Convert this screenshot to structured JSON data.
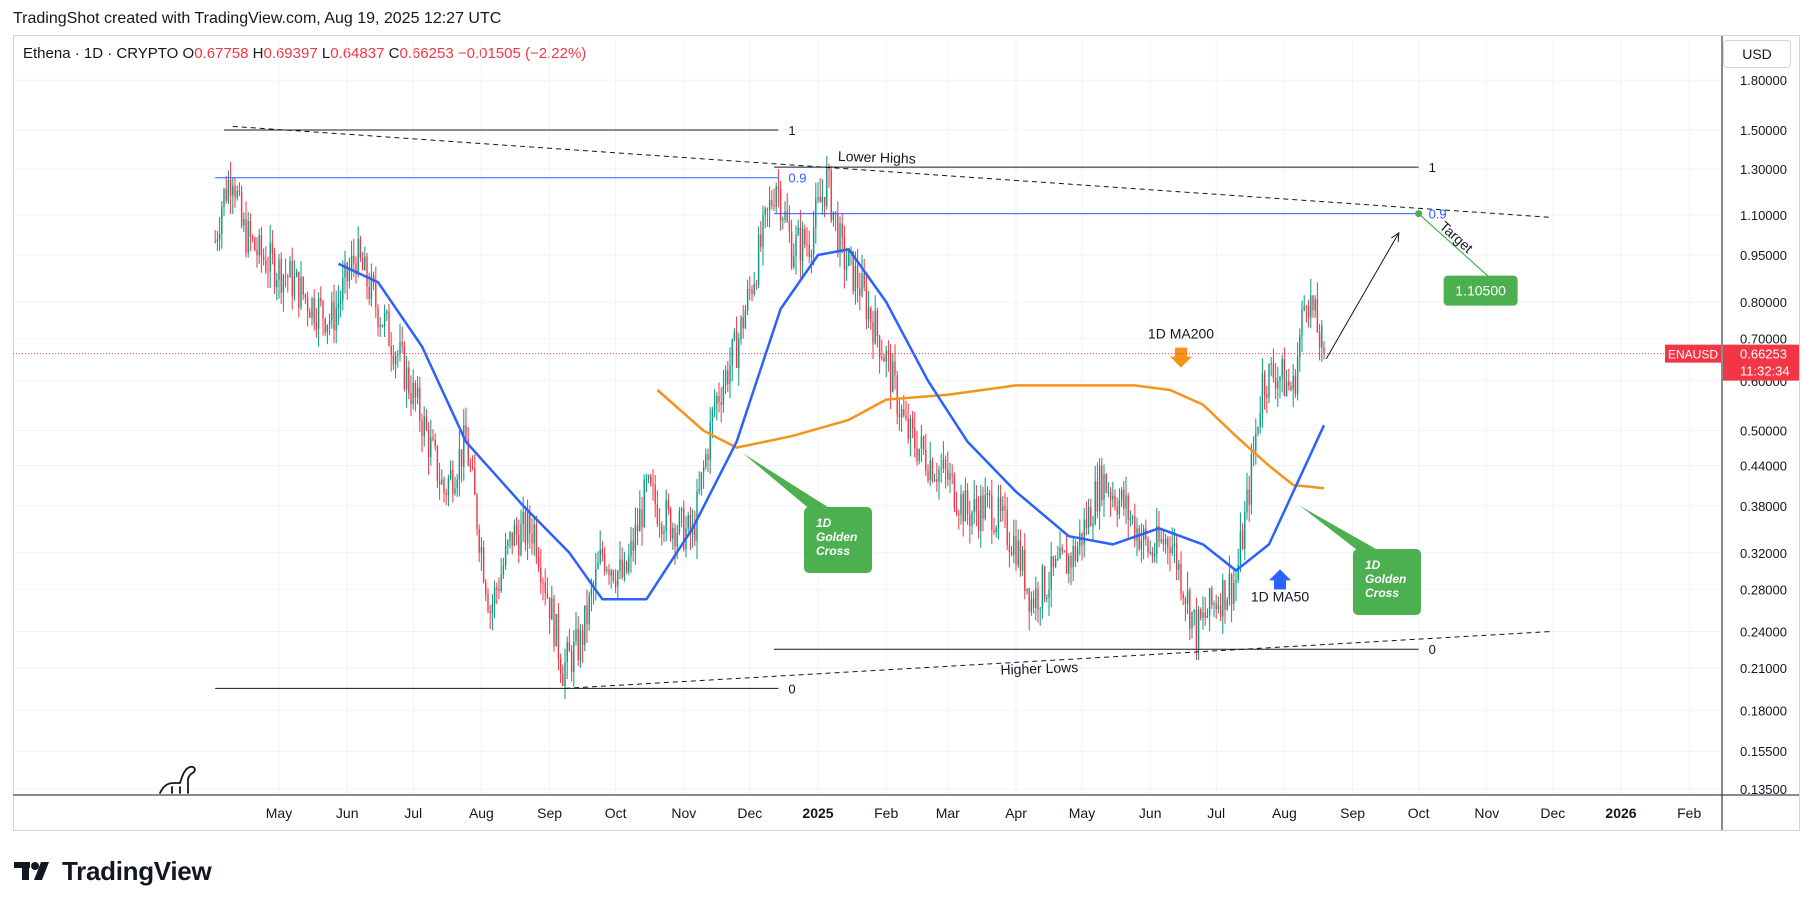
{
  "header": {
    "caption": "TradingShot created with TradingView.com, Aug 19, 2025 12:27 UTC"
  },
  "legend": {
    "symbol": "Ethena · 1D · CRYPTO",
    "open_label": "O",
    "open": "0.67758",
    "high_label": "H",
    "high": "0.69397",
    "low_label": "L",
    "low": "0.64837",
    "close_label": "C",
    "close": "0.66253",
    "change": "−0.01505 (−2.22%)"
  },
  "price_scale": {
    "currency": "USD",
    "ticks": [
      "1.80000",
      "1.50000",
      "1.30000",
      "1.10000",
      "0.95000",
      "0.80000",
      "0.70000",
      "0.60000",
      "0.50000",
      "0.44000",
      "0.38000",
      "0.32000",
      "0.28000",
      "0.24000",
      "0.21000",
      "0.18000",
      "0.15500",
      "0.13500"
    ],
    "last_price_symbol": "ENAUSD",
    "last_price": "0.66253",
    "countdown": "11:32:34"
  },
  "time_axis": {
    "labels": [
      "May",
      "Jun",
      "Jul",
      "Aug",
      "Sep",
      "Oct",
      "Nov",
      "Dec",
      "2025",
      "Feb",
      "Mar",
      "Apr",
      "May",
      "Jun",
      "Jul",
      "Aug",
      "Sep",
      "Oct",
      "Nov",
      "Dec",
      "2026",
      "Feb"
    ]
  },
  "annotations": {
    "lower_highs": "Lower Highs",
    "higher_lows": "Higher Lows",
    "fib_1_left": "1",
    "fib_09_left": "0.9",
    "fib_0_left": "0",
    "fib_1_right": "1",
    "fib_09_right": "0.9",
    "fib_0_right": "0",
    "target_label": "Target",
    "target_value": "1.10500",
    "ma200_label": "1D MA200",
    "ma50_label": "1D MA50",
    "golden_cross_1": [
      "1D",
      "Golden",
      "Cross"
    ],
    "golden_cross_2": [
      "1D",
      "Golden",
      "Cross"
    ]
  },
  "colors": {
    "up": "#089981",
    "down": "#f23645",
    "ma50": "#2962ff",
    "ma200": "#f7931a",
    "fib_blue": "#2962ff",
    "callout_green": "#4caf50",
    "price_tag": "#f23645"
  },
  "chart_data": {
    "type": "candlestick",
    "symbol": "Ethena",
    "interval": "1D",
    "y_scale": "log",
    "ylim": [
      0.135,
      1.8
    ],
    "x_range": [
      "2024-04-02",
      "2026-02-28"
    ],
    "ohlc_last": {
      "open": 0.67758,
      "high": 0.69397,
      "low": 0.64837,
      "close": 0.66253,
      "change": -0.01505,
      "change_pct": -2.22
    },
    "approx_close_path": [
      [
        "2024-04-02",
        1.0
      ],
      [
        "2024-04-05",
        1.15
      ],
      [
        "2024-04-10",
        1.3
      ],
      [
        "2024-04-14",
        1.05
      ],
      [
        "2024-04-22",
        0.95
      ],
      [
        "2024-05-05",
        0.88
      ],
      [
        "2024-05-15",
        0.8
      ],
      [
        "2024-05-25",
        0.75
      ],
      [
        "2024-06-05",
        0.95
      ],
      [
        "2024-06-15",
        0.78
      ],
      [
        "2024-06-25",
        0.65
      ],
      [
        "2024-07-05",
        0.52
      ],
      [
        "2024-07-15",
        0.4
      ],
      [
        "2024-07-25",
        0.48
      ],
      [
        "2024-08-05",
        0.26
      ],
      [
        "2024-08-15",
        0.34
      ],
      [
        "2024-08-25",
        0.35
      ],
      [
        "2024-09-07",
        0.21
      ],
      [
        "2024-09-15",
        0.23
      ],
      [
        "2024-09-25",
        0.32
      ],
      [
        "2024-10-05",
        0.29
      ],
      [
        "2024-10-15",
        0.4
      ],
      [
        "2024-10-25",
        0.36
      ],
      [
        "2024-11-05",
        0.34
      ],
      [
        "2024-11-15",
        0.55
      ],
      [
        "2024-11-25",
        0.68
      ],
      [
        "2024-12-05",
        0.95
      ],
      [
        "2024-12-13",
        1.25
      ],
      [
        "2024-12-20",
        0.98
      ],
      [
        "2024-12-28",
        1.0
      ],
      [
        "2025-01-05",
        1.25
      ],
      [
        "2025-01-12",
        0.95
      ],
      [
        "2025-01-20",
        0.85
      ],
      [
        "2025-02-01",
        0.65
      ],
      [
        "2025-02-10",
        0.5
      ],
      [
        "2025-02-20",
        0.45
      ],
      [
        "2025-03-01",
        0.42
      ],
      [
        "2025-03-10",
        0.37
      ],
      [
        "2025-03-20",
        0.38
      ],
      [
        "2025-04-01",
        0.33
      ],
      [
        "2025-04-08",
        0.27
      ],
      [
        "2025-04-20",
        0.3
      ],
      [
        "2025-04-28",
        0.32
      ],
      [
        "2025-05-10",
        0.42
      ],
      [
        "2025-05-20",
        0.38
      ],
      [
        "2025-06-01",
        0.32
      ],
      [
        "2025-06-10",
        0.34
      ],
      [
        "2025-06-22",
        0.24
      ],
      [
        "2025-07-01",
        0.27
      ],
      [
        "2025-07-10",
        0.29
      ],
      [
        "2025-07-15",
        0.38
      ],
      [
        "2025-07-22",
        0.6
      ],
      [
        "2025-07-28",
        0.62
      ],
      [
        "2025-08-05",
        0.58
      ],
      [
        "2025-08-11",
        0.84
      ],
      [
        "2025-08-19",
        0.66253
      ]
    ],
    "ma50_path": [
      [
        "2024-05-28",
        0.92
      ],
      [
        "2024-06-15",
        0.86
      ],
      [
        "2024-07-05",
        0.68
      ],
      [
        "2024-07-25",
        0.48
      ],
      [
        "2024-08-20",
        0.38
      ],
      [
        "2024-09-10",
        0.32
      ],
      [
        "2024-09-25",
        0.27
      ],
      [
        "2024-10-15",
        0.27
      ],
      [
        "2024-11-05",
        0.35
      ],
      [
        "2024-11-25",
        0.48
      ],
      [
        "2024-12-15",
        0.78
      ],
      [
        "2025-01-01",
        0.95
      ],
      [
        "2025-01-15",
        0.97
      ],
      [
        "2025-02-01",
        0.8
      ],
      [
        "2025-02-20",
        0.6
      ],
      [
        "2025-03-10",
        0.48
      ],
      [
        "2025-04-01",
        0.4
      ],
      [
        "2025-04-25",
        0.34
      ],
      [
        "2025-05-15",
        0.33
      ],
      [
        "2025-06-05",
        0.35
      ],
      [
        "2025-06-25",
        0.33
      ],
      [
        "2025-07-10",
        0.3
      ],
      [
        "2025-07-25",
        0.33
      ],
      [
        "2025-08-19",
        0.51
      ]
    ],
    "ma200_path": [
      [
        "2024-10-20",
        0.58
      ],
      [
        "2024-11-10",
        0.5
      ],
      [
        "2024-11-25",
        0.47
      ],
      [
        "2024-12-20",
        0.49
      ],
      [
        "2025-01-15",
        0.52
      ],
      [
        "2025-02-01",
        0.56
      ],
      [
        "2025-03-01",
        0.57
      ],
      [
        "2025-04-01",
        0.59
      ],
      [
        "2025-05-01",
        0.59
      ],
      [
        "2025-05-25",
        0.59
      ],
      [
        "2025-06-10",
        0.58
      ],
      [
        "2025-06-25",
        0.55
      ],
      [
        "2025-07-10",
        0.49
      ],
      [
        "2025-07-25",
        0.44
      ],
      [
        "2025-08-05",
        0.41
      ],
      [
        "2025-08-19",
        0.405
      ]
    ],
    "drawings": {
      "fib_left": {
        "level_1": 1.5,
        "level_09": 1.26,
        "level_0": 0.195
      },
      "fib_right": {
        "level_1": 1.31,
        "level_09": 1.105,
        "level_0": 0.225
      },
      "lower_highs_trendline": [
        [
          "2024-04-10",
          1.52
        ],
        [
          "2025-11-30",
          1.09
        ]
      ],
      "higher_lows_trendline": [
        [
          "2024-09-08",
          0.195
        ],
        [
          "2025-11-30",
          0.24
        ]
      ],
      "target": 1.105
    }
  }
}
